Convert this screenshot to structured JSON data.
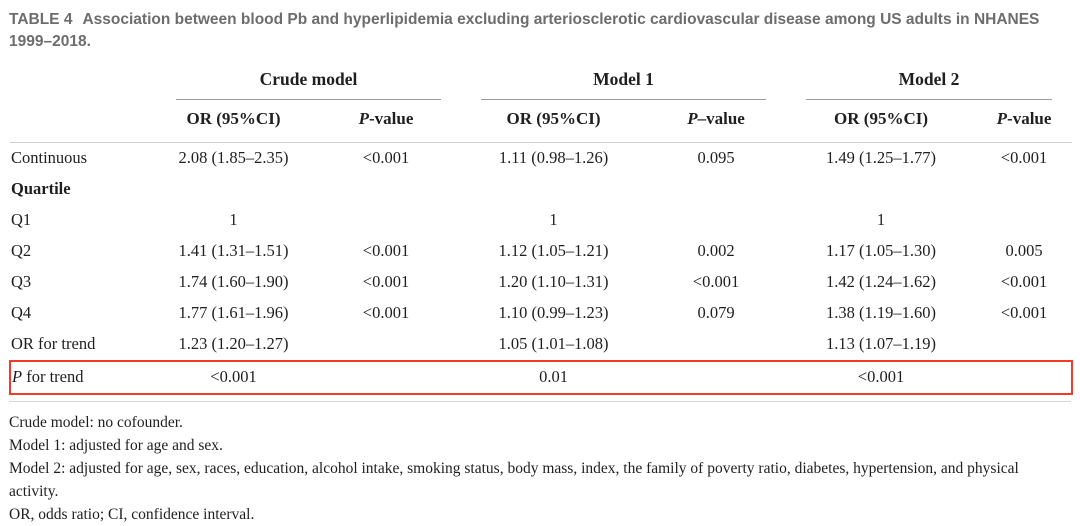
{
  "title": {
    "tag": "TABLE 4",
    "line1": "Association between blood Pb and hyperlipidemia excluding arteriosclerotic cardiovascular disease among US adults in NHANES",
    "line2": "1999–2018."
  },
  "table": {
    "groups": [
      "Crude model",
      "Model 1",
      "Model 2"
    ],
    "or_header": "OR (95%CI)",
    "p_italic": "P",
    "p_rest": [
      "-value",
      "–value",
      "-value"
    ],
    "rows": [
      {
        "label": "Continuous",
        "cells": [
          "2.08 (1.85–2.35)",
          "<0.001",
          "1.11 (0.98–1.26)",
          "0.095",
          "1.49 (1.25–1.77)",
          "<0.001"
        ]
      },
      {
        "label": "Quartile",
        "cells": [
          "",
          "",
          "",
          "",
          "",
          ""
        ]
      },
      {
        "label": "Q1",
        "cells": [
          "1",
          "",
          "1",
          "",
          "1",
          ""
        ]
      },
      {
        "label": "Q2",
        "cells": [
          "1.41 (1.31–1.51)",
          "<0.001",
          "1.12 (1.05–1.21)",
          "0.002",
          "1.17 (1.05–1.30)",
          "0.005"
        ]
      },
      {
        "label": "Q3",
        "cells": [
          "1.74 (1.60–1.90)",
          "<0.001",
          "1.20 (1.10–1.31)",
          "<0.001",
          "1.42 (1.24–1.62)",
          "<0.001"
        ]
      },
      {
        "label": "Q4",
        "cells": [
          "1.77 (1.61–1.96)",
          "<0.001",
          "1.10 (0.99–1.23)",
          "0.079",
          "1.38 (1.19–1.60)",
          "<0.001"
        ]
      },
      {
        "label": "OR for trend",
        "cells": [
          "1.23 (1.20–1.27)",
          "",
          "1.05 (1.01–1.08)",
          "",
          "1.13 (1.07–1.19)",
          ""
        ]
      },
      {
        "label_italic": "P",
        "label_rest": " for trend",
        "cells": [
          "<0.001",
          "",
          "0.01",
          "",
          "<0.001",
          ""
        ]
      }
    ]
  },
  "footnotes": [
    "Crude model: no cofounder.",
    "Model 1: adjusted for age and sex.",
    "Model 2: adjusted for age, sex, races, education, alcohol intake, smoking status, body mass, index, the family of poverty ratio, diabetes, hypertension, and physical activity.",
    "OR, odds ratio; CI, confidence interval."
  ],
  "colors": {
    "highlight_box": "#f23a2b",
    "title_gray": "#6d6d6d",
    "rule_gray": "#cfcfcf"
  }
}
